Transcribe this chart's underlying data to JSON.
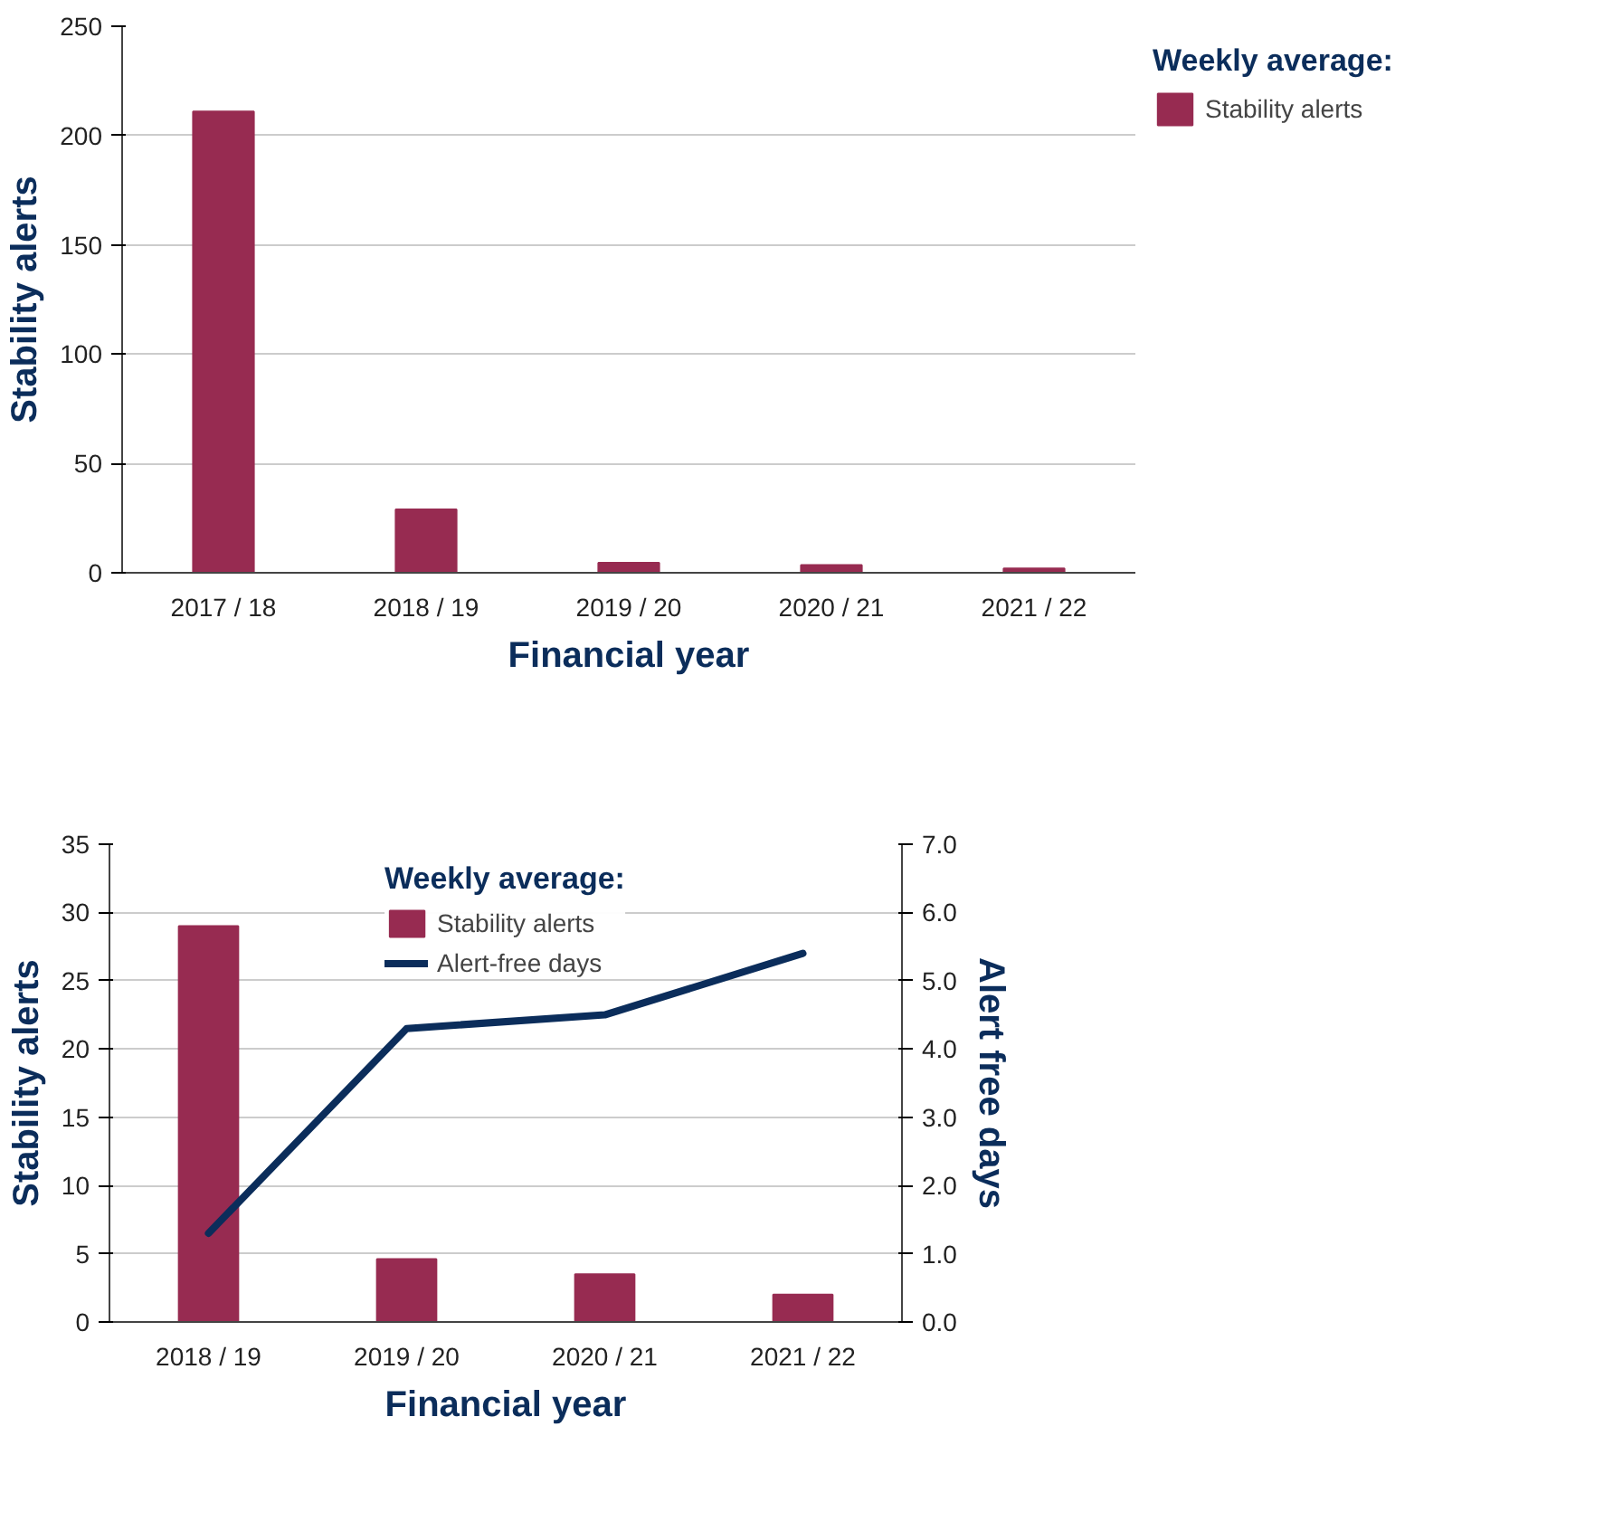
{
  "chart_data": [
    {
      "type": "bar",
      "categories": [
        "2017 / 18",
        "2018 / 19",
        "2019 / 20",
        "2020 / 21",
        "2021 / 22"
      ],
      "series": [
        {
          "name": "Stability alerts",
          "color": "#972b51",
          "values": [
            211,
            29,
            4.6,
            3.5,
            2.0
          ]
        }
      ],
      "ylim": [
        0,
        250
      ],
      "yticks": [
        0,
        50,
        100,
        150,
        200,
        250
      ],
      "xlabel": "Financial year",
      "ylabel": "Stability alerts",
      "legend_title": "Weekly average:",
      "legend": "right",
      "grid": "y"
    },
    {
      "type": "bar",
      "categories": [
        "2018 / 19",
        "2019 / 20",
        "2020 / 21",
        "2021 / 22"
      ],
      "series": [
        {
          "name": "Stability alerts",
          "color": "#972b51",
          "values": [
            29.0,
            4.6,
            3.5,
            2.0
          ]
        },
        {
          "type": "line",
          "axis": "y2",
          "name": "Alert-free days",
          "color": "#0b2d5b",
          "values": [
            1.3,
            4.3,
            4.5,
            5.4
          ]
        }
      ],
      "ylim": [
        0,
        35
      ],
      "yticks": [
        0,
        5,
        10,
        15,
        20,
        25,
        30,
        35
      ],
      "y2lim": [
        0,
        7
      ],
      "y2ticks": [
        {
          "value": 0,
          "label": "0.0"
        },
        {
          "value": 1,
          "label": "1.0"
        },
        {
          "value": 2,
          "label": "2.0"
        },
        {
          "value": 3,
          "label": "3.0"
        },
        {
          "value": 4,
          "label": "4.0"
        },
        {
          "value": 5,
          "label": "5.0"
        },
        {
          "value": 6,
          "label": "6.0"
        },
        {
          "value": 7,
          "label": "7.0"
        }
      ],
      "xlabel": "Financial year",
      "ylabel": "Stability alerts",
      "y2label": "Alert free days",
      "legend_title": "Weekly average:",
      "legend": "top",
      "grid": "y"
    }
  ]
}
